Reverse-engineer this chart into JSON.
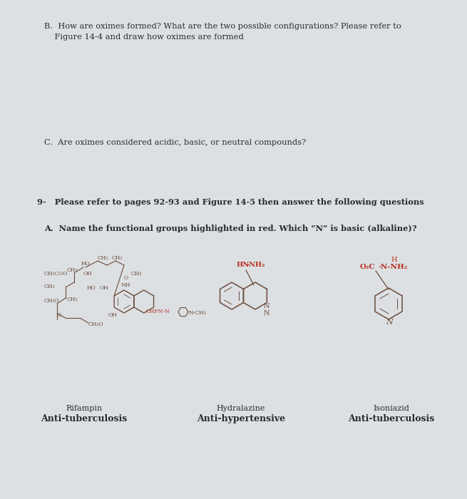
{
  "bg_color": "#dde0e3",
  "text_color": "#2a2a2a",
  "red_color": "#b83020",
  "brown_color": "#6b4c3b",
  "title_b_line1": "B.  How are oximes formed? What are the two possible configurations? Please refer to",
  "title_b_line2": "    Figure 14-4 and draw how oximes are formed",
  "title_c": "C.  Are oximes considered acidic, basic, or neutral compounds?",
  "title_9": "9-   Please refer to pages 92-93 and Figure 14-5 then answer the following questions",
  "title_a": "A.  Name the functional groups highlighted in red. Which “N” is basic (alkaline)?",
  "rifampin_label": "Rifampin",
  "rifampin_sub": "Anti-tuberculosis",
  "hydralazine_label": "Hydralazine",
  "hydralazine_sub": "Anti-hypertensive",
  "isoniazid_label": "Isoniazid",
  "isoniazid_sub": "Anti-tuberculosis",
  "fig_w": 6.55,
  "fig_h": 7.0,
  "dpi": 100
}
